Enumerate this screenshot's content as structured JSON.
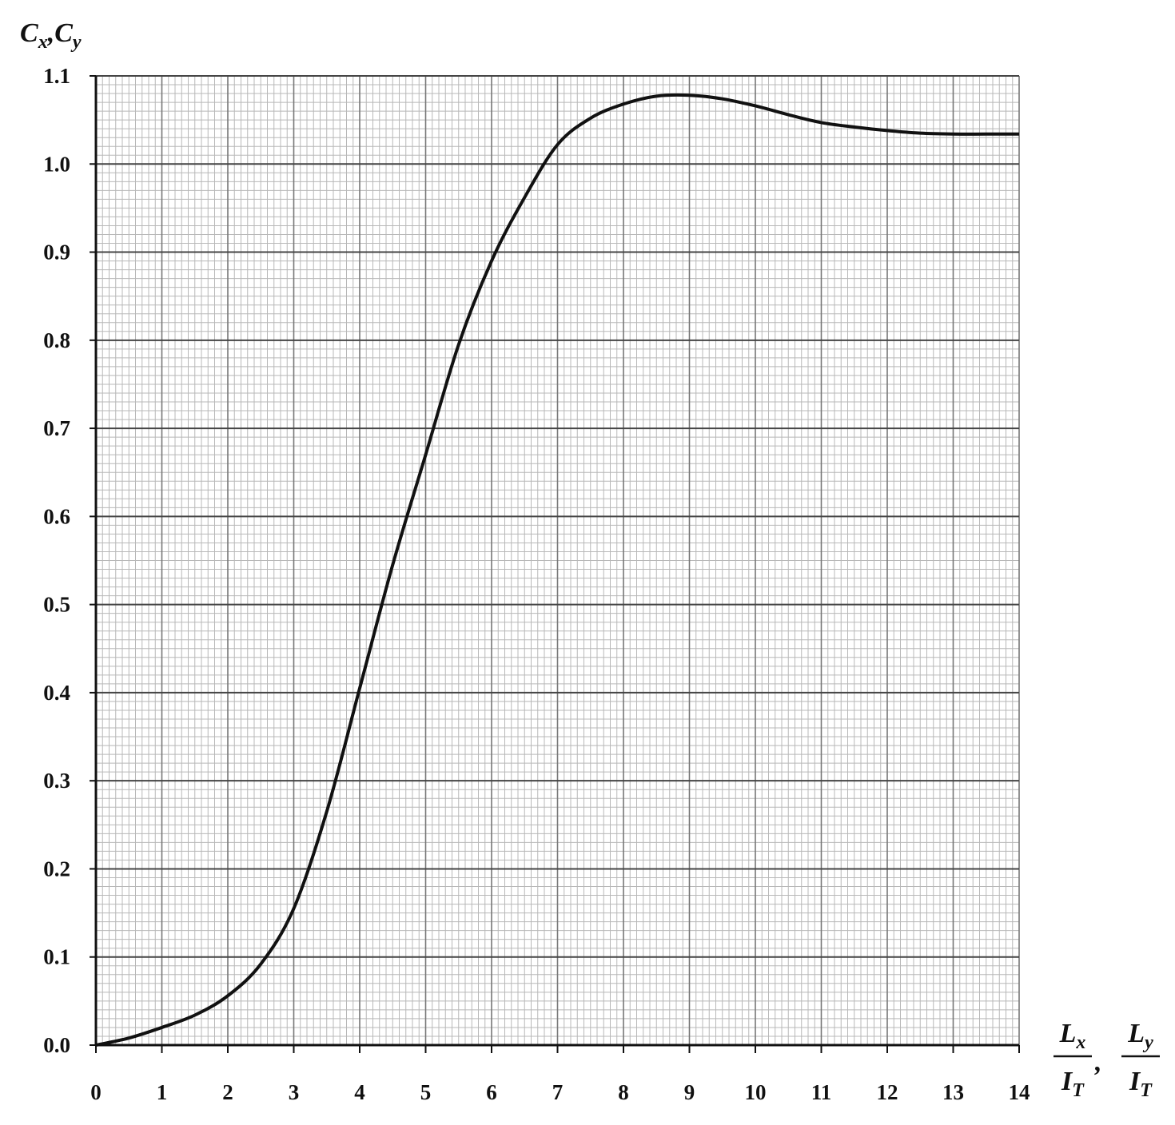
{
  "chart_data": {
    "type": "line",
    "ylabel": {
      "terms": [
        {
          "main": "C",
          "sub": "x"
        },
        {
          "main": "C",
          "sub": "y"
        }
      ],
      "separator": ","
    },
    "xlabel": {
      "fractions": [
        {
          "num": {
            "main": "L",
            "sub": "x"
          },
          "den": {
            "main": "I",
            "sub": "T"
          }
        },
        {
          "num": {
            "main": "L",
            "sub": "y"
          },
          "den": {
            "main": "I",
            "sub": "T"
          }
        }
      ],
      "separator": ","
    },
    "x": [
      0,
      0.5,
      1,
      1.5,
      2,
      2.5,
      3,
      3.5,
      4,
      4.5,
      5,
      5.5,
      6,
      6.5,
      7,
      7.5,
      8,
      8.5,
      9,
      9.5,
      10,
      10.5,
      11,
      11.5,
      12,
      12.5,
      13,
      13.5,
      14
    ],
    "series": [
      {
        "color": "#111111",
        "values": [
          0,
          0.008,
          0.02,
          0.034,
          0.056,
          0.092,
          0.155,
          0.265,
          0.405,
          0.545,
          0.67,
          0.795,
          0.89,
          0.962,
          1.022,
          1.052,
          1.068,
          1.077,
          1.078,
          1.074,
          1.066,
          1.056,
          1.047,
          1.042,
          1.038,
          1.035,
          1.034,
          1.034,
          1.034
        ]
      }
    ],
    "xlim": [
      0,
      14
    ],
    "xticks": [
      0,
      1,
      2,
      3,
      4,
      5,
      6,
      7,
      8,
      9,
      10,
      11,
      12,
      13,
      14
    ],
    "ylim": [
      0,
      1.1
    ],
    "yticks": [
      {
        "value": 0,
        "label": "0.0"
      },
      0.1,
      0.2,
      0.3,
      0.4,
      0.5,
      0.6,
      0.7,
      0.8,
      0.9,
      {
        "value": 1,
        "label": "1.0"
      },
      1.1
    ],
    "grid": true,
    "minor_grid": true
  }
}
